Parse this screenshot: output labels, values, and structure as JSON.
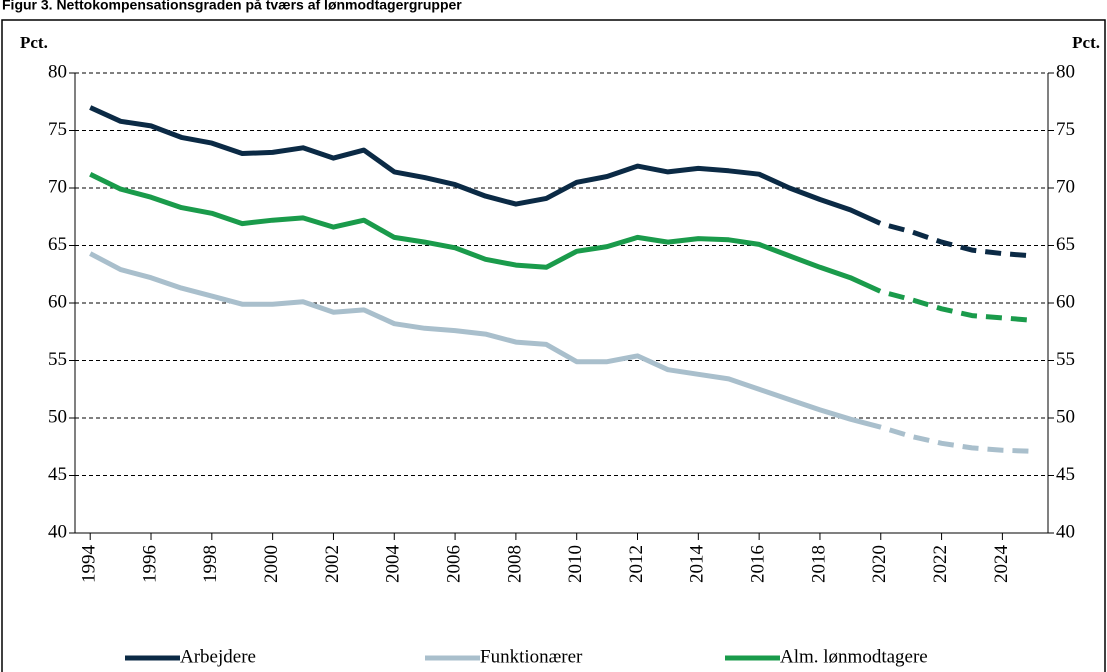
{
  "chart_data": {
    "type": "line",
    "title": "Figur 3. Nettokompensationsgraden på tværs af lønmodtagergrupper",
    "ylabel": "Pct.",
    "y2label": "Pct.",
    "x": [
      1994,
      1995,
      1996,
      1997,
      1998,
      1999,
      2000,
      2001,
      2002,
      2003,
      2004,
      2005,
      2006,
      2007,
      2008,
      2009,
      2010,
      2011,
      2012,
      2013,
      2014,
      2015,
      2016,
      2017,
      2018,
      2019,
      2020,
      2021,
      2022,
      2023,
      2024,
      2025
    ],
    "xlim": [
      1993.5,
      2025.5
    ],
    "xticks": [
      1994,
      1996,
      1998,
      2000,
      2002,
      2004,
      2006,
      2008,
      2010,
      2012,
      2014,
      2016,
      2018,
      2020,
      2022,
      2024
    ],
    "ylim": [
      40,
      80
    ],
    "yticks": [
      40,
      45,
      50,
      55,
      60,
      65,
      70,
      75,
      80
    ],
    "y2lim": [
      40,
      80
    ],
    "y2ticks": [
      40,
      45,
      50,
      55,
      60,
      65,
      70,
      75,
      80
    ],
    "grid": true,
    "legend": "bottom",
    "dashed_from": 2020,
    "series": [
      {
        "name": "Arbejdere",
        "color": "#0b2a45",
        "values": [
          77.0,
          75.8,
          75.4,
          74.4,
          73.9,
          73.0,
          73.1,
          73.5,
          72.6,
          73.3,
          71.4,
          70.9,
          70.3,
          69.3,
          68.6,
          69.1,
          70.5,
          71.0,
          71.9,
          71.4,
          71.7,
          71.5,
          71.2,
          70.0,
          69.0,
          68.1,
          66.9,
          66.2,
          65.3,
          64.6,
          64.3,
          64.1
        ]
      },
      {
        "name": "Funktionærer",
        "color": "#a9bfcc",
        "values": [
          64.3,
          62.9,
          62.2,
          61.3,
          60.6,
          59.9,
          59.9,
          60.1,
          59.2,
          59.4,
          58.2,
          57.8,
          57.6,
          57.3,
          56.6,
          56.4,
          54.9,
          54.9,
          55.4,
          54.2,
          53.8,
          53.4,
          52.5,
          51.6,
          50.7,
          49.9,
          49.2,
          48.4,
          47.8,
          47.4,
          47.2,
          47.1
        ]
      },
      {
        "name": "Alm. lønmodtagere",
        "color": "#1a9b4b",
        "values": [
          71.2,
          69.9,
          69.2,
          68.3,
          67.8,
          66.9,
          67.2,
          67.4,
          66.6,
          67.2,
          65.7,
          65.3,
          64.8,
          63.8,
          63.3,
          63.1,
          64.5,
          64.9,
          65.7,
          65.3,
          65.6,
          65.5,
          65.1,
          64.1,
          63.1,
          62.2,
          61.0,
          60.3,
          59.5,
          58.9,
          58.7,
          58.5
        ]
      }
    ]
  }
}
